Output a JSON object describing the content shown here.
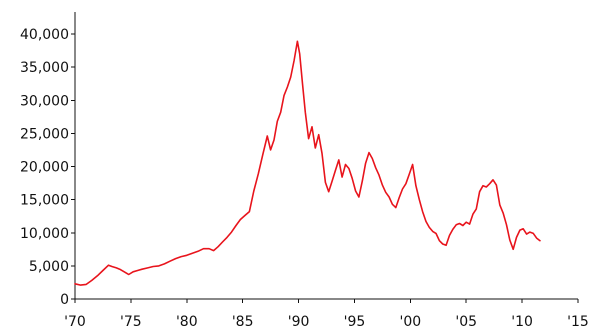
{
  "chart_data": {
    "type": "line",
    "title": "",
    "xlabel": "",
    "ylabel": "",
    "xlim": [
      1970,
      2015
    ],
    "ylim": [
      0,
      40000
    ],
    "grid": false,
    "legend": "none",
    "x_tick_values": [
      1970,
      1975,
      1980,
      1985,
      1990,
      1995,
      2000,
      2005,
      2010,
      2015
    ],
    "x_tick_labels": [
      "'70",
      "'75",
      "'80",
      "'85",
      "'90",
      "'95",
      "'00",
      "'05",
      "'10",
      "'15"
    ],
    "y_tick_values": [
      0,
      5000,
      10000,
      15000,
      20000,
      25000,
      30000,
      35000,
      40000
    ],
    "y_tick_labels": [
      "0",
      "5,000",
      "10,000",
      "15,000",
      "20,000",
      "25,000",
      "30,000",
      "35,000",
      "40,000"
    ],
    "series": [
      {
        "color": "#e8141c",
        "x": [
          1970.0,
          1970.5,
          1971.0,
          1971.5,
          1972.0,
          1972.5,
          1973.0,
          1973.3,
          1973.7,
          1974.0,
          1974.4,
          1974.8,
          1975.2,
          1975.6,
          1976.0,
          1976.5,
          1977.0,
          1977.5,
          1978.0,
          1978.5,
          1979.0,
          1979.5,
          1980.0,
          1980.5,
          1981.0,
          1981.5,
          1982.0,
          1982.4,
          1982.8,
          1983.2,
          1983.6,
          1984.0,
          1984.4,
          1984.8,
          1985.2,
          1985.6,
          1986.0,
          1986.4,
          1986.8,
          1987.2,
          1987.5,
          1987.8,
          1988.1,
          1988.4,
          1988.7,
          1989.0,
          1989.3,
          1989.6,
          1989.9,
          1990.1,
          1990.35,
          1990.6,
          1990.9,
          1991.2,
          1991.5,
          1991.8,
          1992.1,
          1992.4,
          1992.7,
          1993.0,
          1993.3,
          1993.6,
          1993.9,
          1994.2,
          1994.5,
          1994.8,
          1995.1,
          1995.4,
          1995.7,
          1996.0,
          1996.3,
          1996.6,
          1996.9,
          1997.2,
          1997.5,
          1997.8,
          1998.1,
          1998.4,
          1998.7,
          1999.0,
          1999.3,
          1999.6,
          1999.9,
          2000.2,
          2000.5,
          2000.8,
          2001.1,
          2001.4,
          2001.7,
          2002.0,
          2002.3,
          2002.6,
          2002.9,
          2003.2,
          2003.5,
          2003.8,
          2004.1,
          2004.4,
          2004.7,
          2005.0,
          2005.3,
          2005.6,
          2005.9,
          2006.2,
          2006.5,
          2006.8,
          2007.1,
          2007.4,
          2007.7,
          2008.0,
          2008.3,
          2008.6,
          2008.9,
          2009.2,
          2009.5,
          2009.8,
          2010.1,
          2010.4,
          2010.7,
          2011.0,
          2011.3,
          2011.6
        ],
        "y": [
          2300,
          2100,
          2200,
          2800,
          3500,
          4300,
          5100,
          4900,
          4700,
          4500,
          4100,
          3700,
          4100,
          4300,
          4500,
          4700,
          4900,
          5000,
          5300,
          5700,
          6100,
          6400,
          6600,
          6900,
          7200,
          7600,
          7600,
          7300,
          7900,
          8600,
          9300,
          10100,
          11100,
          12000,
          12600,
          13200,
          16300,
          18900,
          21800,
          24600,
          22500,
          24000,
          26800,
          28200,
          30700,
          32000,
          33500,
          36000,
          38900,
          37000,
          32500,
          28200,
          24200,
          26000,
          22800,
          24800,
          22000,
          17600,
          16200,
          17800,
          19400,
          21000,
          18400,
          20300,
          19700,
          18200,
          16300,
          15400,
          17800,
          20500,
          22100,
          21200,
          19800,
          18700,
          17200,
          16100,
          15400,
          14300,
          13800,
          15300,
          16600,
          17400,
          18800,
          20300,
          17100,
          15000,
          13200,
          11700,
          10800,
          10200,
          9900,
          8800,
          8300,
          8100,
          9600,
          10500,
          11200,
          11400,
          11100,
          11600,
          11300,
          12800,
          13600,
          16200,
          17100,
          16900,
          17400,
          18000,
          17200,
          14200,
          13000,
          11200,
          8900,
          7500,
          9300,
          10400,
          10600,
          9800,
          10100,
          9900,
          9200,
          8800
        ]
      }
    ]
  }
}
